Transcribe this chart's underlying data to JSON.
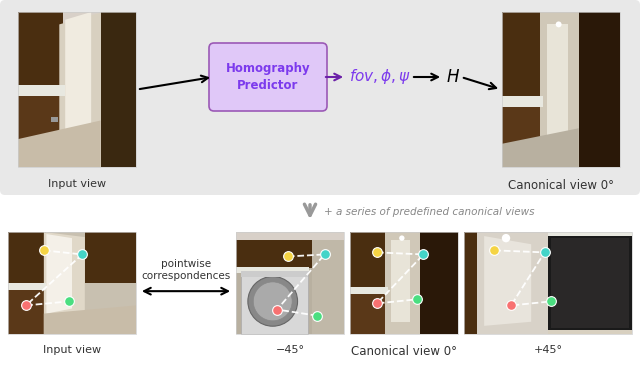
{
  "bg_color": "#ffffff",
  "top_panel_bg": "#e8e8e8",
  "box_color": "#e0c8f8",
  "box_edge_color": "#9b59b6",
  "box_text": "Homography\nPredictor",
  "box_text_color": "#7c3aed",
  "purple_arrow_color": "#6b21a8",
  "formula_color": "#7c3aed",
  "H_color": "#333333",
  "label_input_top": "Input view",
  "label_canonical_top": "Canonical view 0°",
  "middle_text": "+ a series of predefined canonical views",
  "middle_text_color": "#888888",
  "label_input_bottom": "Input view",
  "label_minus45": "−45°",
  "label_canonical_bottom": "Canonical view 0°",
  "label_plus45": "+45°",
  "pointwise_text": "pointwise\ncorrespondences",
  "dot_colors": [
    "#f5d444",
    "#44d4c8",
    "#f87171",
    "#4ade80"
  ],
  "figure_width": 6.4,
  "figure_height": 3.68
}
